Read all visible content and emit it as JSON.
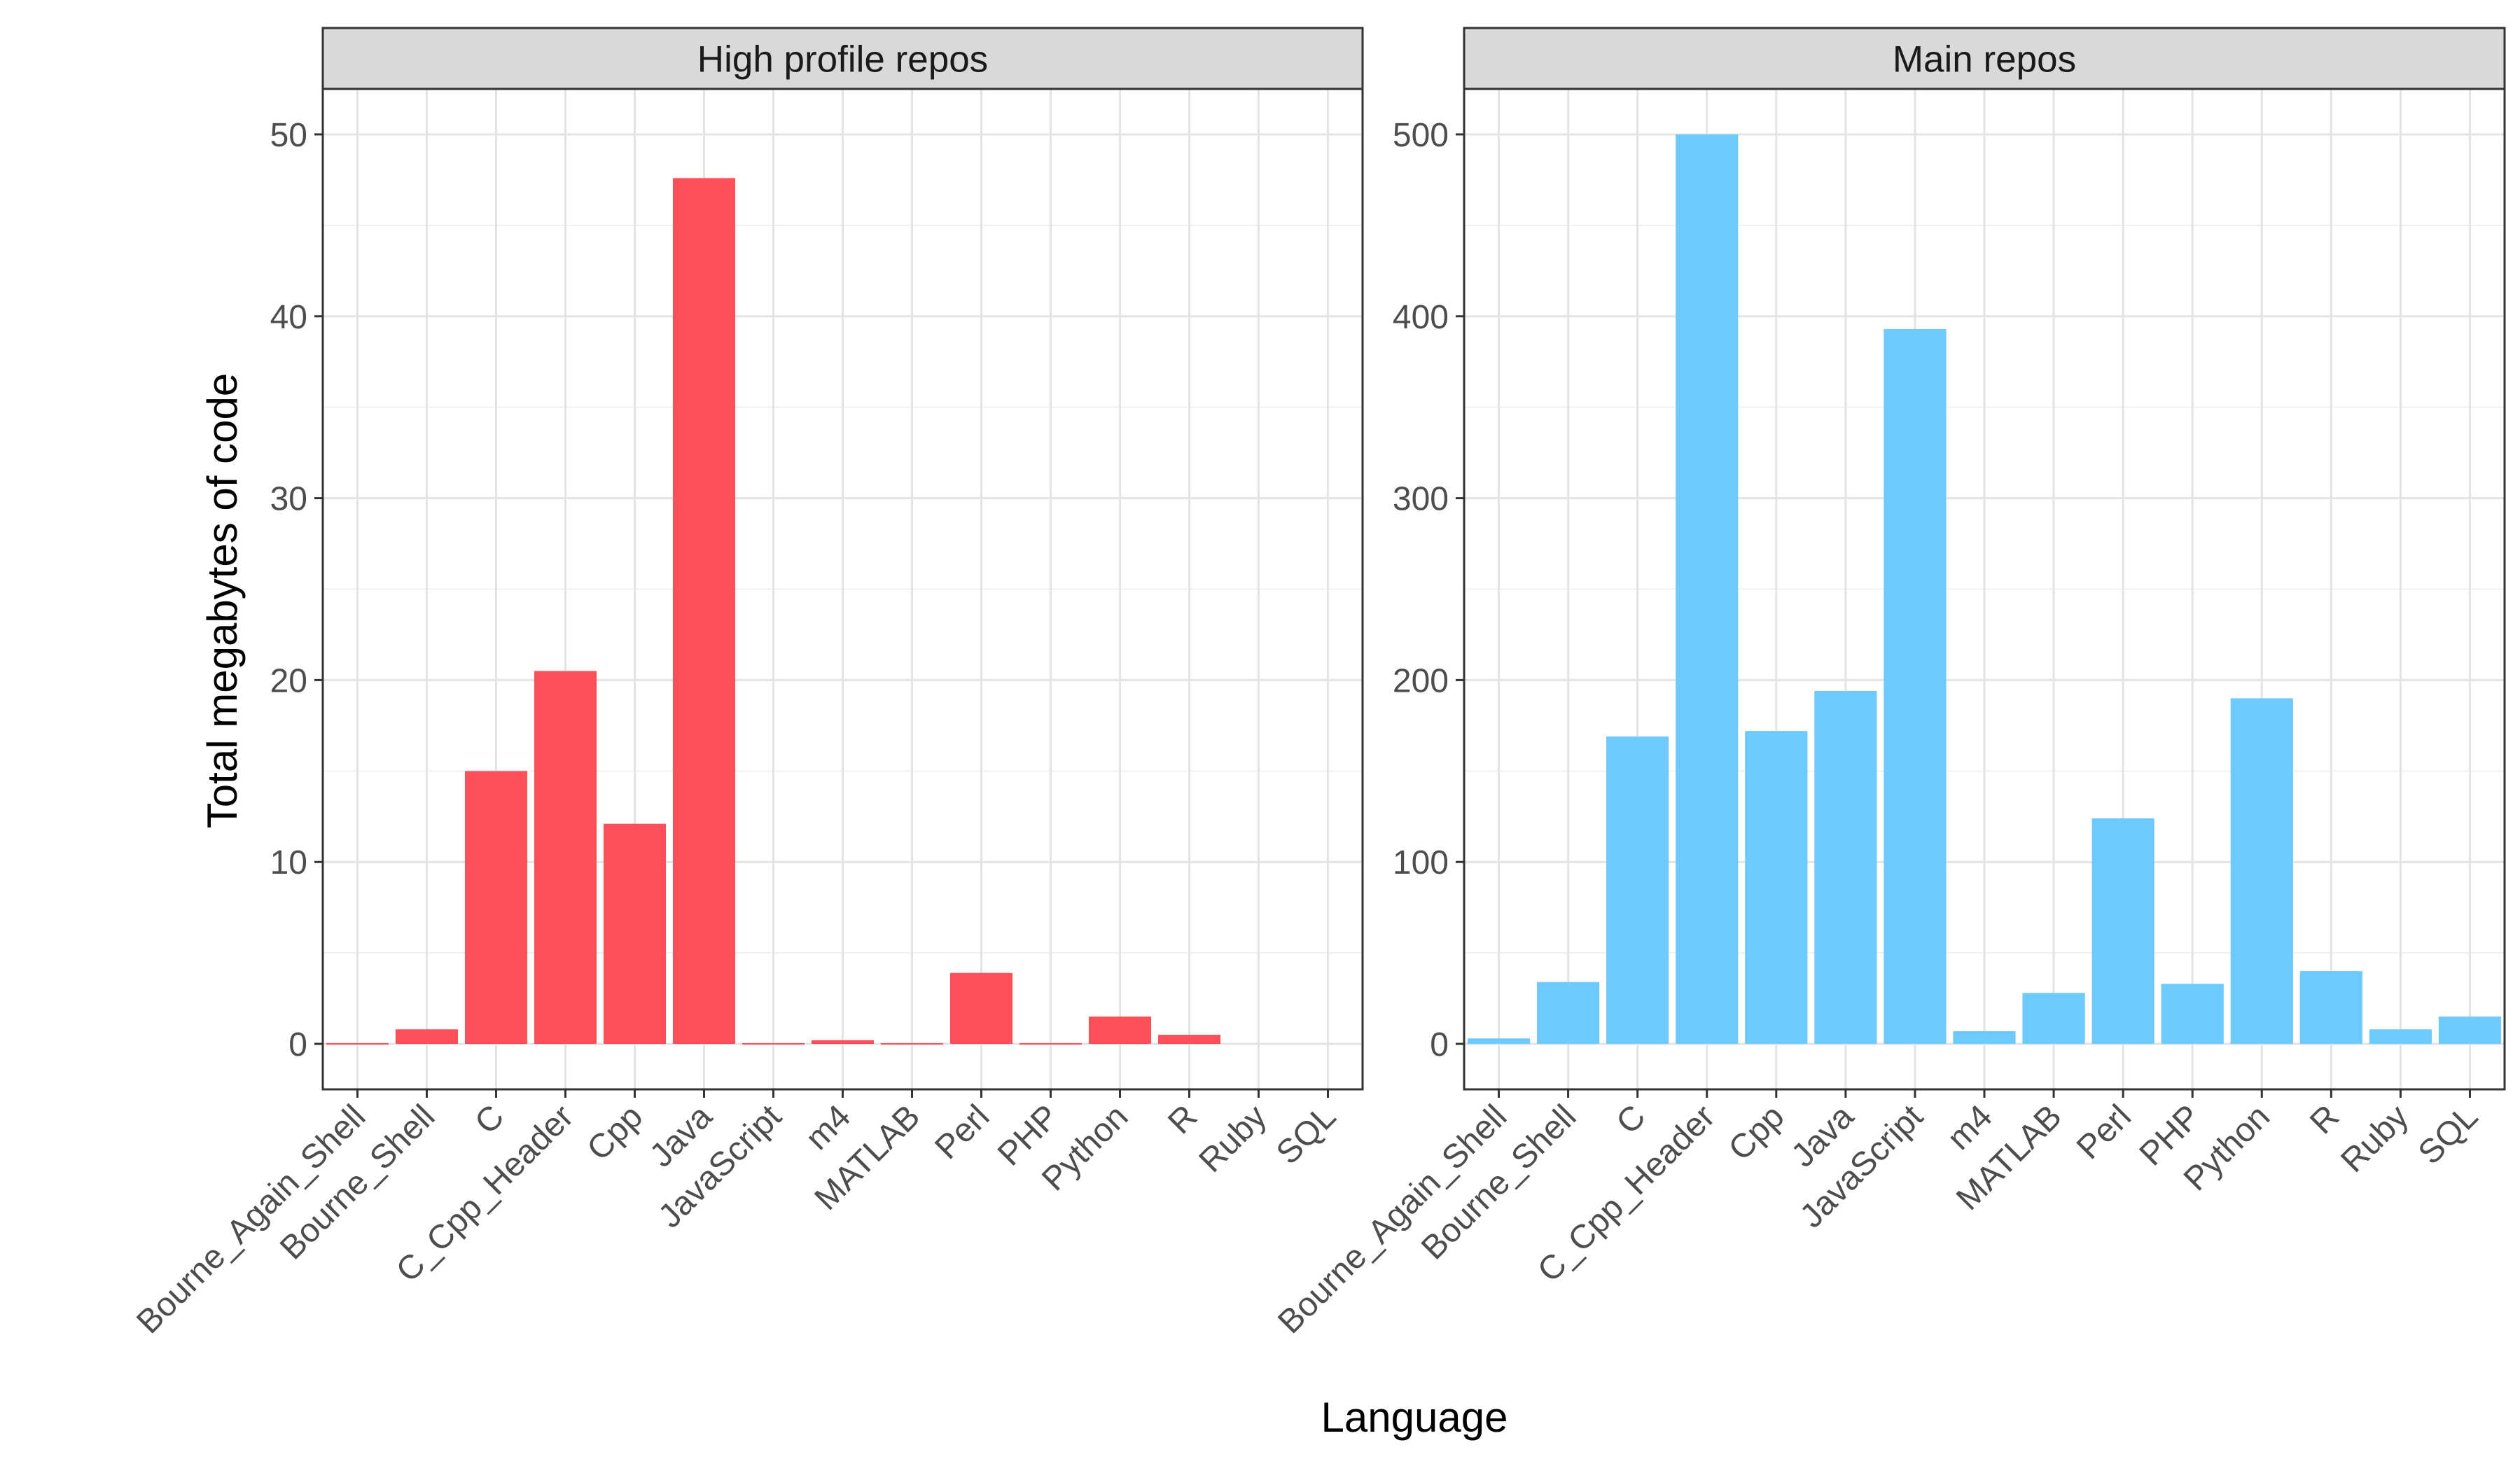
{
  "chart_data": {
    "type": "bar",
    "layout": "faceted",
    "xlabel": "Language",
    "ylabel": "Total megabytes of code",
    "categories": [
      "Bourne_Again_Shell",
      "Bourne_Shell",
      "C",
      "C_Cpp_Header",
      "Cpp",
      "Java",
      "JavaScript",
      "m4",
      "MATLAB",
      "Perl",
      "PHP",
      "Python",
      "R",
      "Ruby",
      "SQL"
    ],
    "grid": true,
    "panels": [
      {
        "title": "High profile repos",
        "color": "#FF4F58",
        "ylim": [
          -2.5,
          52.5
        ],
        "yticks": [
          0,
          10,
          20,
          30,
          40,
          50
        ],
        "values": [
          0.05,
          0.8,
          15.0,
          20.5,
          12.1,
          47.6,
          0.05,
          0.2,
          0.05,
          3.9,
          0.05,
          1.5,
          0.5,
          0,
          0
        ]
      },
      {
        "title": "Main repos",
        "color": "#6EC9FF",
        "ylim": [
          -25,
          525
        ],
        "yticks": [
          0,
          100,
          200,
          300,
          400,
          500
        ],
        "values": [
          3,
          34,
          169,
          500,
          172,
          194,
          393,
          7,
          28,
          124,
          33,
          190,
          40,
          8,
          15
        ]
      }
    ]
  }
}
